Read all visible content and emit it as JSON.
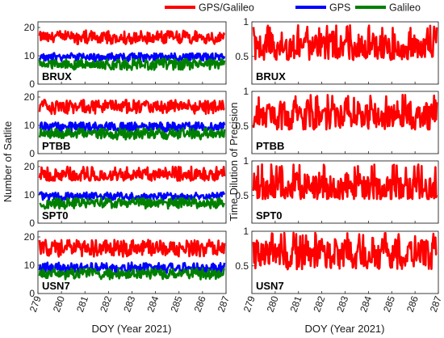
{
  "chart_data": {
    "type": "line",
    "xlabel": "DOY (Year 2021)",
    "x_ticks": [
      "279",
      "280",
      "281",
      "282",
      "283",
      "284",
      "285",
      "286",
      "287"
    ],
    "xlim": [
      279,
      287
    ],
    "colors": {
      "GPS/Galileo": "#ff0000",
      "GPS": "#0000ff",
      "Galileo": "#008000"
    },
    "legend": [
      "GPS/Galileo",
      "GPS",
      "Galileo"
    ],
    "legend_position": "top",
    "left": {
      "ylabel": "Number of Satlite",
      "ylim": [
        0,
        22
      ],
      "y_ticks": [
        "0",
        "10",
        "20"
      ],
      "panels": [
        {
          "station": "BRUX",
          "series": [
            {
              "name": "GPS/Galileo",
              "mean": 16.5,
              "range": [
                14,
                19
              ]
            },
            {
              "name": "GPS",
              "mean": 9.5,
              "range": [
                8,
                11
              ]
            },
            {
              "name": "Galileo",
              "mean": 7,
              "range": [
                5,
                9
              ]
            }
          ]
        },
        {
          "station": "PTBB",
          "series": [
            {
              "name": "GPS/Galileo",
              "mean": 16.5,
              "range": [
                14,
                19
              ]
            },
            {
              "name": "GPS",
              "mean": 9.5,
              "range": [
                7,
                11
              ]
            },
            {
              "name": "Galileo",
              "mean": 7,
              "range": [
                5,
                9
              ]
            }
          ]
        },
        {
          "station": "SPT0",
          "series": [
            {
              "name": "GPS/Galileo",
              "mean": 17,
              "range": [
                15,
                20
              ]
            },
            {
              "name": "GPS",
              "mean": 9.5,
              "range": [
                8,
                11
              ]
            },
            {
              "name": "Galileo",
              "mean": 7,
              "range": [
                5,
                9
              ]
            }
          ]
        },
        {
          "station": "USN7",
          "series": [
            {
              "name": "GPS/Galileo",
              "mean": 16,
              "range": [
                13,
                19
              ]
            },
            {
              "name": "GPS",
              "mean": 9,
              "range": [
                7,
                11
              ]
            },
            {
              "name": "Galileo",
              "mean": 7,
              "range": [
                5,
                9
              ]
            }
          ]
        }
      ]
    },
    "right": {
      "ylabel": "Time Dilution of Precision",
      "ylim": [
        0.1,
        1.0
      ],
      "y_ticks": [
        "0.5",
        "1"
      ],
      "panels": [
        {
          "station": "BRUX",
          "series": [
            {
              "name": "GPS/Galileo",
              "mean": 0.65,
              "range": [
                0.45,
                0.95
              ]
            }
          ]
        },
        {
          "station": "PTBB",
          "series": [
            {
              "name": "GPS/Galileo",
              "mean": 0.65,
              "range": [
                0.45,
                0.95
              ]
            }
          ]
        },
        {
          "station": "SPT0",
          "series": [
            {
              "name": "GPS/Galileo",
              "mean": 0.62,
              "range": [
                0.45,
                0.95
              ]
            }
          ]
        },
        {
          "station": "USN7",
          "series": [
            {
              "name": "GPS/Galileo",
              "mean": 0.68,
              "range": [
                0.45,
                0.98
              ]
            }
          ]
        }
      ]
    }
  }
}
